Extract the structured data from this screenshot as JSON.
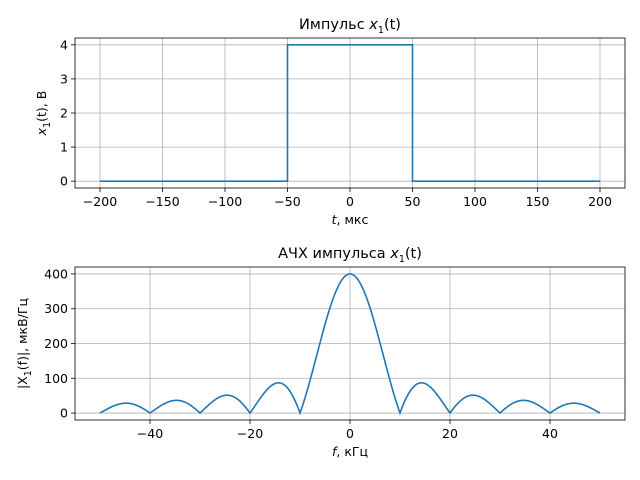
{
  "chart_data": [
    {
      "type": "line",
      "title": "Импульс x₁(t)",
      "title_parts": {
        "prefix": "Импульс ",
        "var": "x",
        "sub": "1",
        "arg": "(t)"
      },
      "xlabel_parts": {
        "var": "t",
        "rest": ", мкс"
      },
      "ylabel_parts": {
        "var": "x",
        "sub": "1",
        "arg": "(t)",
        "rest": ", В"
      },
      "xlim": [
        -200,
        200
      ],
      "ylim": [
        0,
        4
      ],
      "xticks": [
        -200,
        -150,
        -100,
        -50,
        0,
        50,
        100,
        150,
        200
      ],
      "xtick_labels": [
        "−200",
        "−150",
        "−100",
        "−50",
        "0",
        "50",
        "100",
        "150",
        "200"
      ],
      "yticks": [
        0,
        1,
        2,
        3,
        4
      ],
      "ytick_labels": [
        "0",
        "1",
        "2",
        "3",
        "4"
      ],
      "grid": true,
      "series": [
        {
          "x": [
            -200,
            -50,
            -50,
            50,
            50,
            200
          ],
          "y": [
            0,
            0,
            4,
            4,
            0,
            0
          ]
        }
      ]
    },
    {
      "type": "line",
      "title": "АЧХ импульса x₁(t)",
      "title_parts": {
        "prefix": "АЧХ импульса ",
        "var": "x",
        "sub": "1",
        "arg": "(t)"
      },
      "xlabel_parts": {
        "var": "f",
        "rest": ", кГц"
      },
      "ylabel_parts": {
        "pre": "|X",
        "sub": "1",
        "arg": "(f)|",
        "rest": ", мкВ/Гц"
      },
      "xlim": [
        -50,
        50
      ],
      "ylim": [
        0,
        400
      ],
      "xticks": [
        -40,
        -20,
        0,
        20,
        40
      ],
      "xtick_labels": [
        "−40",
        "−20",
        "0",
        "20",
        "40"
      ],
      "yticks": [
        0,
        100,
        200,
        300,
        400
      ],
      "ytick_labels": [
        "0",
        "100",
        "200",
        "300",
        "400"
      ],
      "grid": true,
      "series": [
        {
          "function": "|400·sinc(f/10)|",
          "amplitude": 400,
          "first_zero_khz": 10,
          "x_range": [
            -50,
            50
          ]
        }
      ]
    }
  ]
}
